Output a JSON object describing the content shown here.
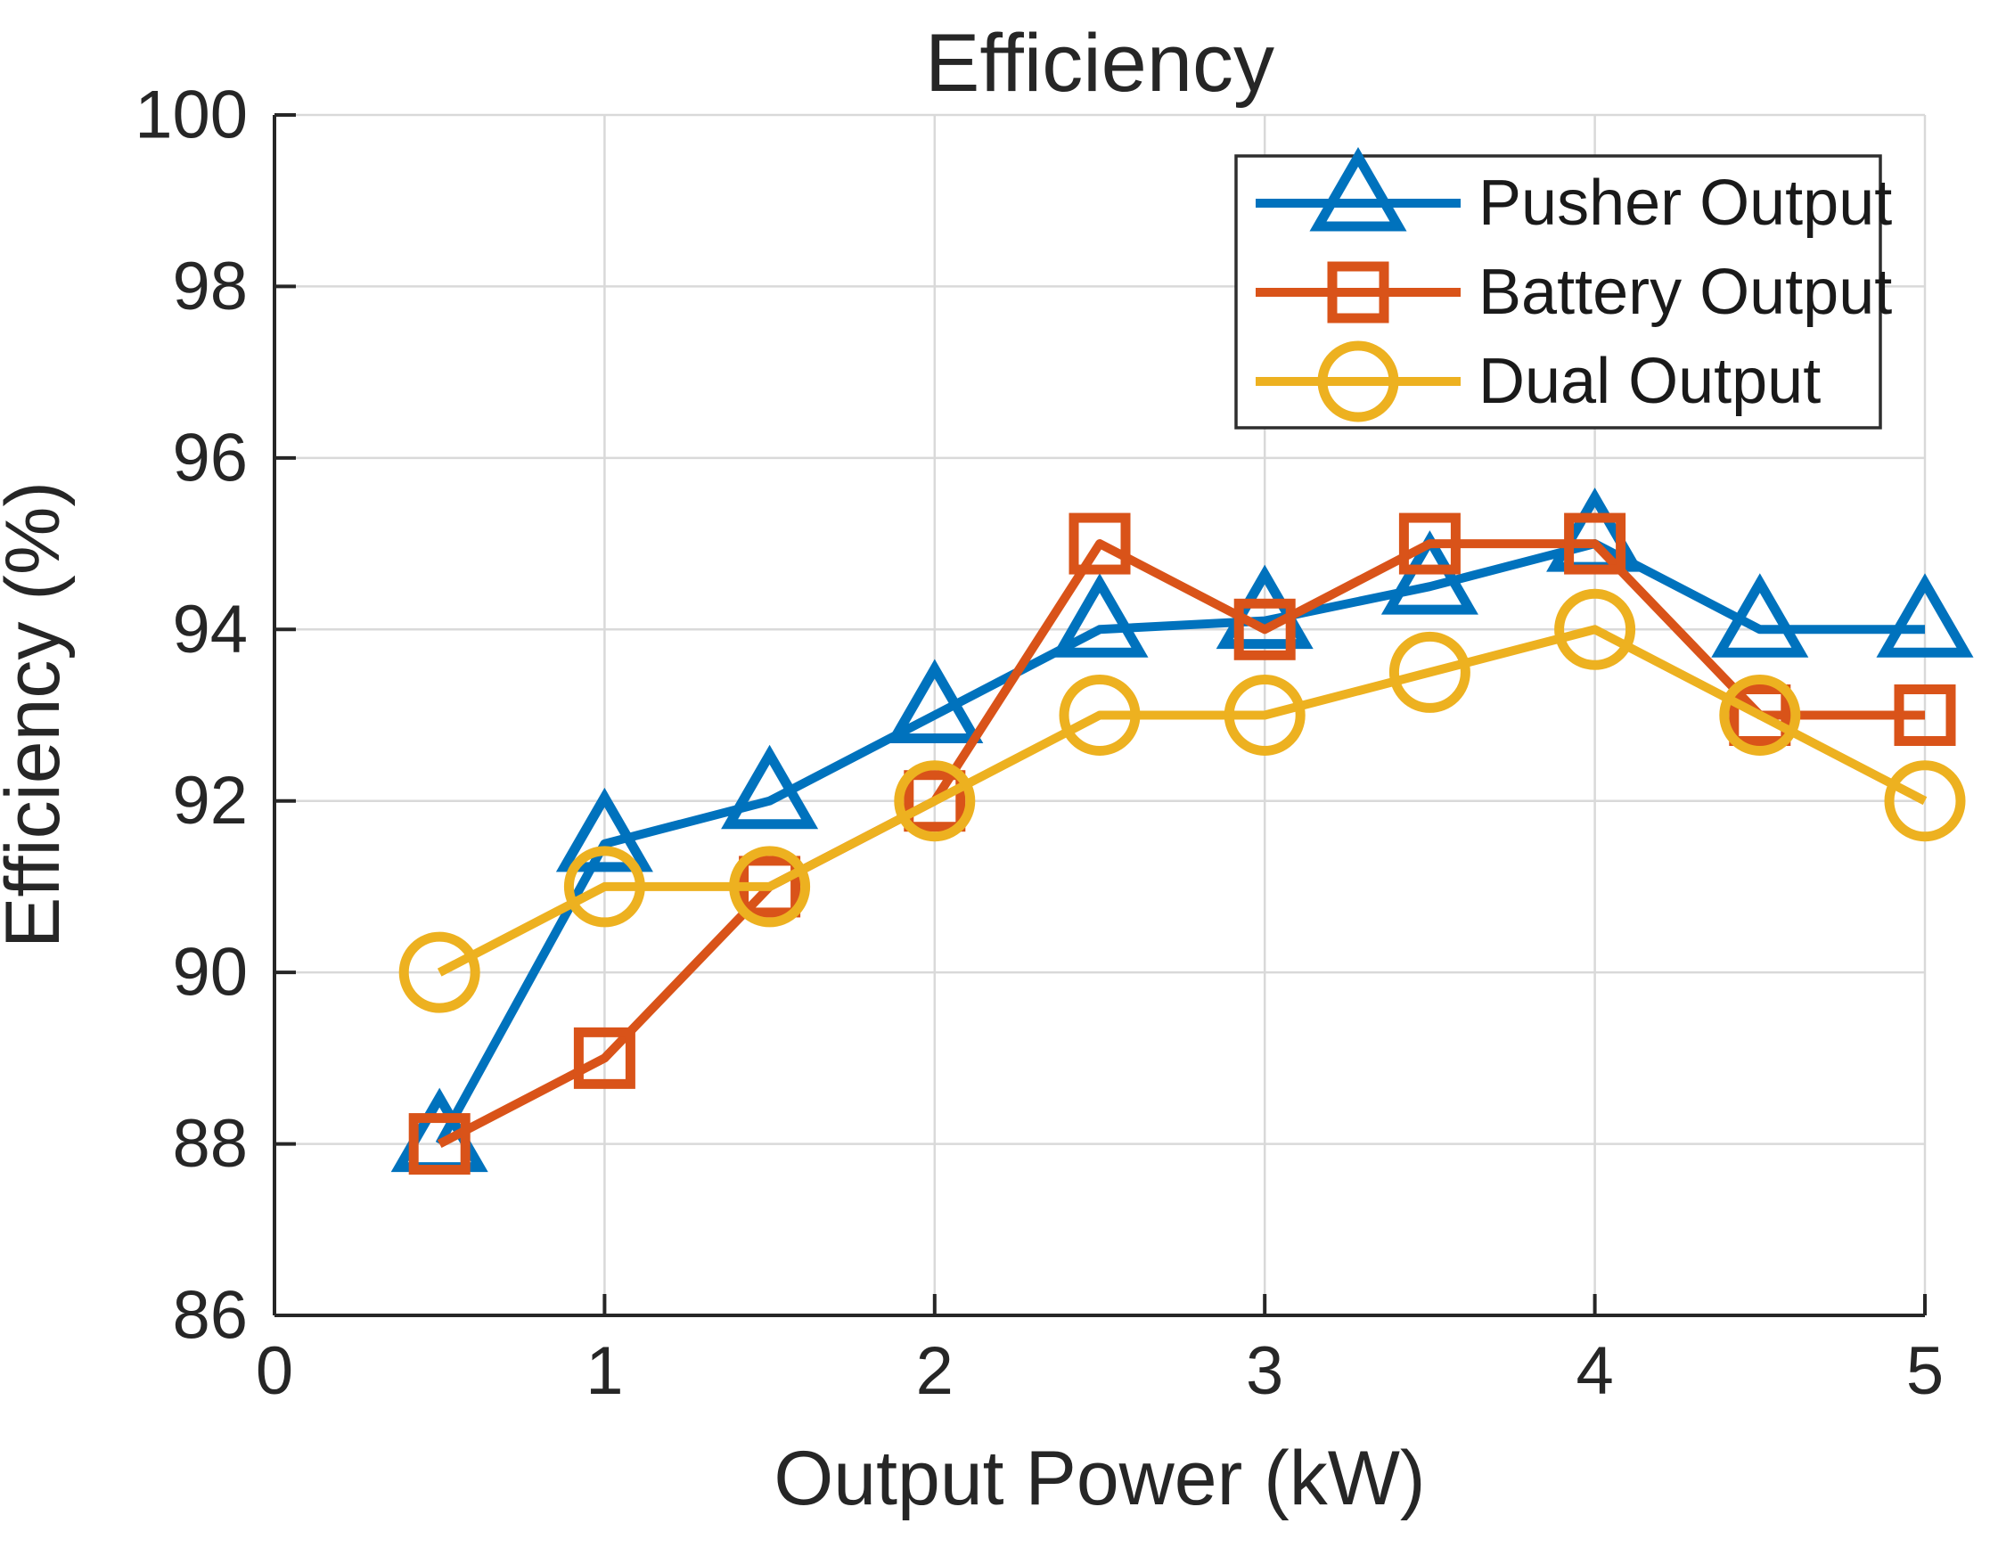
{
  "chart_data": {
    "type": "line",
    "title": "Efficiency",
    "xlabel": "Output Power (kW)",
    "ylabel": "Efficiency (%)",
    "xlim": [
      0,
      5
    ],
    "ylim": [
      86,
      100
    ],
    "x_ticks": [
      0,
      1,
      2,
      3,
      4,
      5
    ],
    "y_ticks": [
      86,
      88,
      90,
      92,
      94,
      96,
      98,
      100
    ],
    "grid": true,
    "legend_position": "top-right",
    "x": [
      0.5,
      1,
      1.5,
      2,
      2.5,
      3,
      3.5,
      4,
      4.5,
      5
    ],
    "series": [
      {
        "name": "Pusher Output",
        "marker": "triangle",
        "color": "#0072BD",
        "values": [
          88,
          91.5,
          92,
          93,
          94,
          94.1,
          94.5,
          95,
          94,
          94
        ]
      },
      {
        "name": "Battery Output",
        "marker": "square",
        "color": "#D95319",
        "values": [
          88,
          89,
          91,
          92,
          95,
          94,
          95,
          95,
          93,
          93
        ]
      },
      {
        "name": "Dual Output",
        "marker": "circle",
        "color": "#EDB120",
        "values": [
          90,
          91,
          91,
          92,
          93,
          93,
          93.5,
          94,
          93,
          92
        ]
      }
    ],
    "axis_color": "#262626",
    "grid_color": "#d9d9d9",
    "text_color": "#262626",
    "legend_border_color": "#2e2e2e",
    "legend_bg_color": "#ffffff"
  }
}
